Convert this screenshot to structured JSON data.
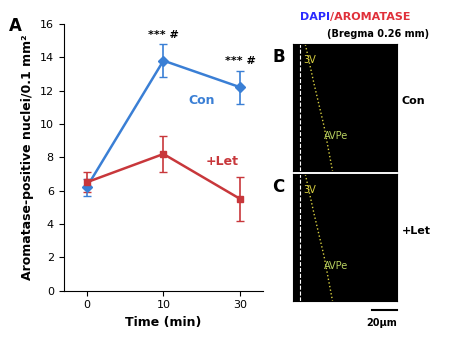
{
  "chart_data": {
    "type": "line",
    "panel_label": "A",
    "x_label": "Time (min)",
    "y_label": "Aromatase-positive nuclei/0.1 mm²",
    "categories": [
      "0",
      "10",
      "30"
    ],
    "ylim": [
      0,
      16
    ],
    "yticks": [
      0,
      2,
      4,
      6,
      8,
      10,
      12,
      14,
      16
    ],
    "series": [
      {
        "name": "Con",
        "color": "#3a7fd5",
        "marker": "diamond",
        "values": [
          6.2,
          13.8,
          12.2
        ],
        "errors": [
          0.5,
          1.0,
          1.0
        ]
      },
      {
        "name": "+Let",
        "color": "#c8373b",
        "marker": "square",
        "values": [
          6.5,
          8.2,
          5.5
        ],
        "errors": [
          0.6,
          1.1,
          1.3
        ]
      }
    ],
    "annotations": [
      {
        "text": "*** #",
        "category": "10"
      },
      {
        "text": "*** #",
        "category": "30"
      }
    ]
  },
  "images": {
    "stain": [
      {
        "text": "DAPI",
        "color": "#2a2aff"
      },
      {
        "text": "/AROMATASE",
        "color": "#e0303a"
      }
    ],
    "bregma": "(Bregma 0.26 mm)",
    "panels": [
      {
        "panel_label": "B",
        "condition": "Con",
        "region_labels": [
          "3V",
          "AVPe"
        ]
      },
      {
        "panel_label": "C",
        "condition": "+Let",
        "region_labels": [
          "3V",
          "AVPe"
        ]
      }
    ],
    "scale_bar": "20μm"
  }
}
